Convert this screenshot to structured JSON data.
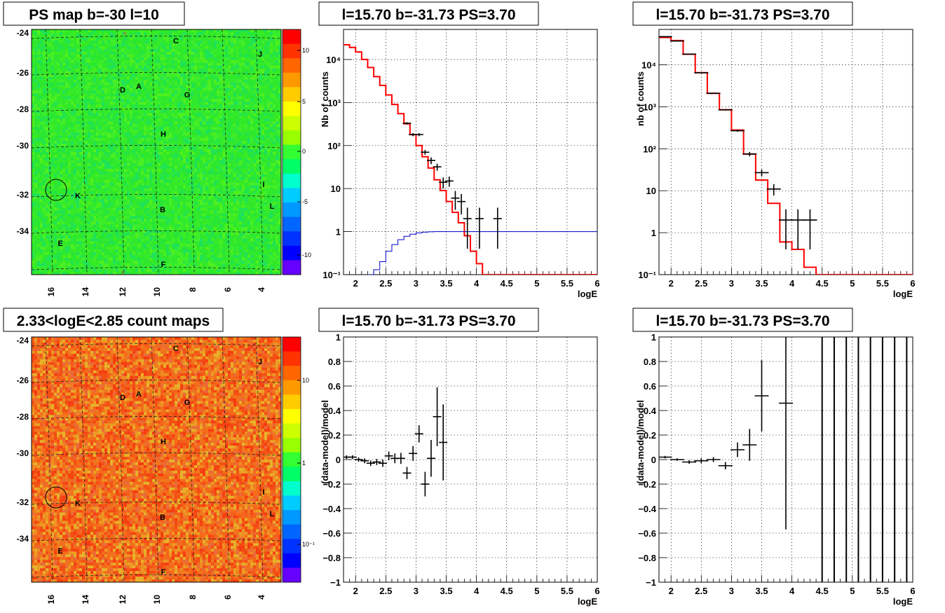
{
  "chart_data": [
    {
      "type": "heatmap",
      "title": "PS map b=-30 l=10",
      "xticks": [
        "16",
        "14",
        "12",
        "10",
        "8",
        "6",
        "4"
      ],
      "yticks": [
        "-24",
        "-26",
        "-28",
        "-30",
        "-32",
        "-34"
      ],
      "colorbar_type": "linear",
      "colorbar_ticks": [
        "10",
        "5",
        "0",
        "-5",
        "-10"
      ],
      "dominant_color": "#2ee82a",
      "labels": [
        "C",
        "J",
        "D",
        "A",
        "G",
        "H",
        "I",
        "K",
        "L",
        "B",
        "E",
        "F"
      ]
    },
    {
      "type": "line",
      "title": "l=15.70 b=-31.73 PS=3.70",
      "xlabel": "logE",
      "ylabel": "Nb of counts",
      "xlim": [
        1.8,
        6
      ],
      "ylim": [
        0.1,
        50000
      ],
      "yscale": "log",
      "xticks": [
        "2",
        "2.5",
        "3",
        "3.5",
        "4",
        "4.5",
        "5",
        "5.5",
        "6"
      ],
      "yticks": [
        "10⁻¹",
        "1",
        "10",
        "10²",
        "10³",
        "10⁴"
      ],
      "grid": true,
      "series": [
        {
          "color": "#ff0000",
          "step": true,
          "x": [
            1.8,
            1.9,
            2.0,
            2.1,
            2.2,
            2.3,
            2.4,
            2.5,
            2.6,
            2.7,
            2.8,
            2.9,
            3.0,
            3.1,
            3.2,
            3.3,
            3.4,
            3.5,
            3.6,
            3.7,
            3.8,
            3.9,
            4.0,
            4.1,
            6.0
          ],
          "values": [
            22000,
            19000,
            15000,
            10000,
            6500,
            4000,
            2500,
            1500,
            900,
            550,
            320,
            180,
            100,
            55,
            30,
            16,
            9,
            5,
            2.8,
            1.6,
            0.8,
            0.35,
            0.18,
            0.1,
            0.1
          ]
        },
        {
          "color": "#0000cc",
          "step": true,
          "x": [
            2.2,
            2.3,
            2.4,
            2.5,
            2.6,
            2.7,
            2.8,
            2.9,
            3.0,
            3.1,
            3.2,
            3.3,
            3.4,
            3.5,
            6.0
          ],
          "values": [
            0.1,
            0.13,
            0.2,
            0.35,
            0.5,
            0.65,
            0.78,
            0.87,
            0.93,
            0.97,
            0.99,
            1.0,
            1.0,
            1.0,
            1.0
          ]
        },
        {
          "color": "#000000",
          "points": true,
          "x": [
            2.85,
            2.95,
            3.05,
            3.15,
            3.25,
            3.35,
            3.45,
            3.55,
            3.65,
            3.75,
            3.85,
            4.05,
            4.35
          ],
          "values": [
            330,
            180,
            180,
            70,
            45,
            32,
            14,
            15,
            6,
            5,
            2,
            2,
            2
          ],
          "err": [
            20,
            15,
            15,
            9,
            8,
            6,
            4,
            4,
            2.8,
            2.5,
            1.6,
            1.6,
            1.6
          ]
        }
      ]
    },
    {
      "type": "line",
      "title": "l=15.70 b=-31.73 PS=3.70",
      "xlabel": "logE",
      "ylabel": "nb of counts",
      "xlim": [
        1.8,
        6
      ],
      "ylim": [
        0.1,
        70000
      ],
      "yscale": "log",
      "xticks": [
        "2",
        "2.5",
        "3",
        "3.5",
        "4",
        "4.5",
        "5",
        "5.5",
        "6"
      ],
      "yticks": [
        "10⁻¹",
        "1",
        "10",
        "10²",
        "10³",
        "10⁴"
      ],
      "grid": true,
      "series": [
        {
          "color": "#ff0000",
          "step": true,
          "x": [
            1.8,
            2.0,
            2.2,
            2.4,
            2.6,
            2.8,
            3.0,
            3.2,
            3.4,
            3.6,
            3.8,
            4.0,
            4.2,
            4.4,
            6.0
          ],
          "values": [
            45000,
            38000,
            18000,
            6500,
            2100,
            850,
            280,
            75,
            18,
            5,
            0.6,
            0.4,
            0.15,
            0.1,
            0.1
          ]
        },
        {
          "color": "#000000",
          "points": true,
          "x": [
            1.9,
            2.1,
            2.3,
            2.5,
            2.7,
            2.9,
            3.1,
            3.3,
            3.5,
            3.7,
            3.9,
            4.1,
            4.3
          ],
          "values": [
            47000,
            37000,
            18000,
            6500,
            2100,
            850,
            270,
            75,
            27,
            11,
            2,
            2,
            2
          ],
          "err": [
            200,
            190,
            130,
            80,
            45,
            30,
            16,
            9,
            5,
            3.3,
            1.6,
            1.6,
            1.6
          ]
        }
      ]
    },
    {
      "type": "heatmap",
      "title": "2.33<logE<2.85 count maps",
      "xticks": [
        "16",
        "14",
        "12",
        "10",
        "8",
        "6",
        "4"
      ],
      "yticks": [
        "-24",
        "-26",
        "-28",
        "-30",
        "-32",
        "-34"
      ],
      "colorbar_type": "log",
      "colorbar_ticks": [
        "10",
        "1",
        "10⁻¹"
      ],
      "dominant_color": "#f4601a",
      "labels": [
        "C",
        "J",
        "D",
        "A",
        "G",
        "H",
        "I",
        "K",
        "L",
        "B",
        "E",
        "F"
      ]
    },
    {
      "type": "scatter",
      "title": "l=15.70 b=-31.73 PS=3.70",
      "xlabel": "logE",
      "ylabel": "(data-model)/model",
      "xlim": [
        1.8,
        6
      ],
      "ylim": [
        -1,
        1
      ],
      "xticks": [
        "2",
        "2.5",
        "3",
        "3.5",
        "4",
        "4.5",
        "5",
        "5.5",
        "6"
      ],
      "yticks": [
        "−1",
        "−0.8",
        "−0.6",
        "−0.4",
        "−0.2",
        "0",
        "0.2",
        "0.4",
        "0.6",
        "0.8",
        "1"
      ],
      "grid": true,
      "series": [
        {
          "color": "#000000",
          "x": [
            1.85,
            1.95,
            2.05,
            2.15,
            2.25,
            2.35,
            2.45,
            2.55,
            2.65,
            2.75,
            2.85,
            2.95,
            3.05,
            3.15,
            3.25,
            3.35,
            3.45
          ],
          "values": [
            0.02,
            0.02,
            0.0,
            -0.01,
            -0.03,
            -0.02,
            -0.03,
            0.03,
            0.01,
            0.01,
            -0.11,
            0.05,
            0.21,
            -0.2,
            0.01,
            0.35,
            0.14
          ],
          "err": [
            0.015,
            0.015,
            0.018,
            0.02,
            0.022,
            0.025,
            0.03,
            0.035,
            0.04,
            0.045,
            0.05,
            0.06,
            0.07,
            0.1,
            0.15,
            0.24,
            0.31
          ]
        }
      ]
    },
    {
      "type": "scatter",
      "title": "l=15.70 b=-31.73 PS=3.70",
      "xlabel": "logE",
      "ylabel": "(data-model)/model",
      "xlim": [
        1.8,
        6
      ],
      "ylim": [
        -1,
        1
      ],
      "xticks": [
        "2",
        "2.5",
        "3",
        "3.5",
        "4",
        "4.5",
        "5",
        "5.5",
        "6"
      ],
      "yticks": [
        "−1",
        "−0.8",
        "−0.6",
        "−0.4",
        "−0.2",
        "0",
        "0.2",
        "0.4",
        "0.6",
        "0.8",
        "1"
      ],
      "grid": true,
      "series": [
        {
          "color": "#000000",
          "x": [
            1.9,
            2.1,
            2.3,
            2.5,
            2.7,
            2.9,
            3.1,
            3.3,
            3.5,
            3.9
          ],
          "values": [
            0.02,
            0.0,
            -0.02,
            -0.01,
            0.0,
            -0.05,
            0.08,
            0.12,
            0.52,
            0.46
          ],
          "err": [
            0.01,
            0.01,
            0.015,
            0.02,
            0.02,
            0.03,
            0.06,
            0.13,
            0.29,
            1.03
          ]
        },
        {
          "color": "#000000",
          "vlines": true,
          "x": [
            4.5,
            4.7,
            4.9,
            5.1,
            5.3,
            5.5,
            5.7,
            5.9
          ]
        }
      ]
    }
  ]
}
